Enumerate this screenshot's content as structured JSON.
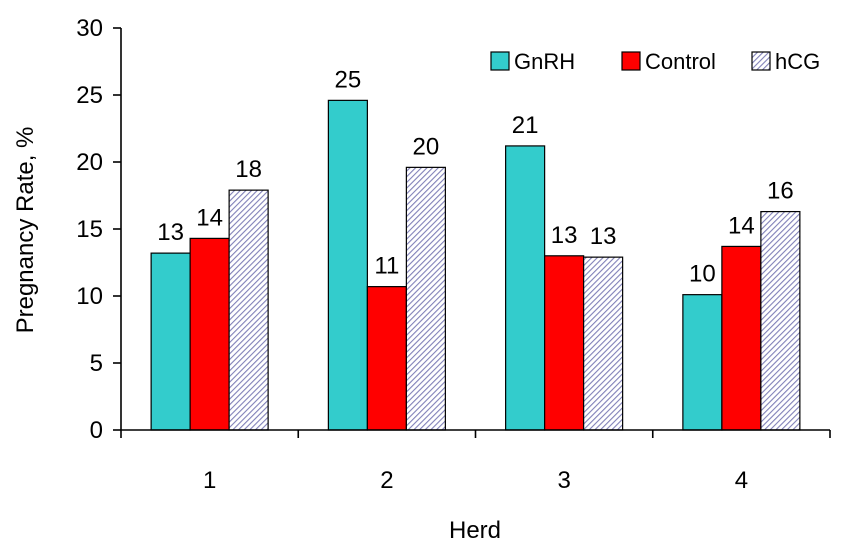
{
  "chart_data": {
    "type": "bar",
    "title": "",
    "xlabel": "Herd",
    "ylabel": "Pregnancy Rate, %",
    "categories": [
      "1",
      "2",
      "3",
      "4"
    ],
    "ylim": [
      0,
      30
    ],
    "yticks": [
      0,
      5,
      10,
      15,
      20,
      25,
      30
    ],
    "grid": false,
    "legend_position": "top-right",
    "series": [
      {
        "name": "GnRH",
        "values": [
          13.2,
          24.6,
          21.2,
          10.1
        ],
        "labels": [
          "13",
          "25",
          "21",
          "10"
        ],
        "color": "#33CCCC",
        "pattern": "solid"
      },
      {
        "name": "Control",
        "values": [
          14.3,
          10.7,
          13.0,
          13.7
        ],
        "labels": [
          "14",
          "11",
          "13",
          "14"
        ],
        "color": "#FF0000",
        "pattern": "solid"
      },
      {
        "name": "hCG",
        "values": [
          17.9,
          19.6,
          12.9,
          16.3
        ],
        "labels": [
          "18",
          "20",
          "13",
          "16"
        ],
        "color": "#9999CC",
        "pattern": "hatched"
      }
    ]
  }
}
